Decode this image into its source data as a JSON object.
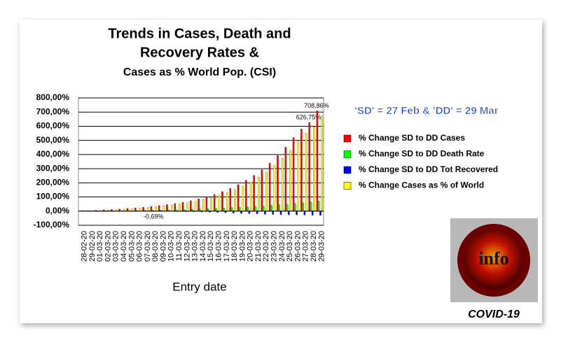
{
  "chart_data": {
    "type": "bar",
    "title": [
      "Trends in Cases, Death and",
      "Recovery Rates &"
    ],
    "subtitle": "Cases as % World Pop. (CSI)",
    "note": "'SD' = 27 Feb & 'DD' = 29 Mar",
    "x_label": "Entry date",
    "categories": [
      "28-02-20",
      "29-02-20",
      "01-03-20",
      "02-03-20",
      "03-03-20",
      "04-03-20",
      "05-03-20",
      "06-03-20",
      "07-03-20",
      "08-03-20",
      "09-03-20",
      "10-03-20",
      "11-03-20",
      "12-03-20",
      "13-03-20",
      "14-03-20",
      "15-03-20",
      "16-03-20",
      "17-03-20",
      "18-03-20",
      "19-03-20",
      "20-03-20",
      "21-03-20",
      "22-03-20",
      "23-03-20",
      "24-03-20",
      "25-03-20",
      "26-03-20",
      "27-03-20",
      "28-03-20",
      "29-03-20"
    ],
    "series": [
      {
        "name": "% Change SD to DD Cases",
        "color": "#ff0000",
        "values": [
          2,
          4,
          6,
          9,
          12,
          15,
          19,
          23,
          28,
          33,
          39,
          46,
          54,
          63,
          74,
          87,
          101,
          118,
          138,
          161,
          188,
          218,
          253,
          293,
          340,
          394,
          452,
          520,
          580,
          627,
          709
        ],
        "value_labels": [
          null,
          null,
          null,
          null,
          null,
          null,
          null,
          null,
          null,
          null,
          null,
          null,
          null,
          null,
          null,
          null,
          null,
          null,
          null,
          null,
          null,
          null,
          null,
          null,
          null,
          null,
          null,
          null,
          null,
          "626,75%",
          "708,86%"
        ]
      },
      {
        "name": "% Change SD to DD Death Rate",
        "color": "#00ff00",
        "values": [
          1,
          2,
          2,
          3,
          3,
          4,
          4,
          5,
          6,
          7,
          8,
          9,
          10,
          12,
          14,
          16,
          18,
          20,
          22,
          25,
          28,
          31,
          34,
          38,
          42,
          46,
          50,
          55,
          60,
          66,
          72
        ]
      },
      {
        "name": "% Change SD to DD Tot Recovered",
        "color": "#0000ff",
        "values": [
          -1,
          -1,
          -1,
          -1,
          -1,
          -1,
          -1,
          -1,
          -1,
          -0.69,
          -1,
          -2,
          -3,
          -4,
          -5,
          -6,
          -8,
          -10,
          -12,
          -14,
          -16,
          -18,
          -20,
          -22,
          -24,
          -25,
          -26,
          -27,
          -28,
          -29,
          -30
        ],
        "value_labels": [
          null,
          null,
          null,
          null,
          null,
          null,
          null,
          null,
          null,
          "-0,69%",
          null,
          null,
          null,
          null,
          null,
          null,
          null,
          null,
          null,
          null,
          null,
          null,
          null,
          null,
          null,
          null,
          null,
          null,
          null,
          null,
          null
        ]
      },
      {
        "name": "% Change Cases as % of World",
        "color": "#ffff00",
        "values": [
          1,
          3,
          5,
          8,
          11,
          14,
          18,
          22,
          26,
          31,
          37,
          44,
          51,
          60,
          70,
          82,
          96,
          112,
          131,
          153,
          178,
          207,
          240,
          278,
          323,
          374,
          430,
          494,
          551,
          596,
          673
        ]
      }
    ],
    "ylim": [
      -100,
      800
    ],
    "yticks": [
      {
        "value": -100,
        "label": "-100,00%"
      },
      {
        "value": 0,
        "label": "0,00%"
      },
      {
        "value": 100,
        "label": "100,00%"
      },
      {
        "value": 200,
        "label": "200,00%"
      },
      {
        "value": 300,
        "label": "300,00%"
      },
      {
        "value": 400,
        "label": "400,00%"
      },
      {
        "value": 500,
        "label": "500,00%"
      },
      {
        "value": 600,
        "label": "600,00%"
      },
      {
        "value": 700,
        "label": "700,00%"
      },
      {
        "value": 800,
        "label": "800,00%"
      }
    ],
    "grid": true,
    "legend": "right",
    "icon_label": "info",
    "icon_caption": "COVID-19"
  }
}
